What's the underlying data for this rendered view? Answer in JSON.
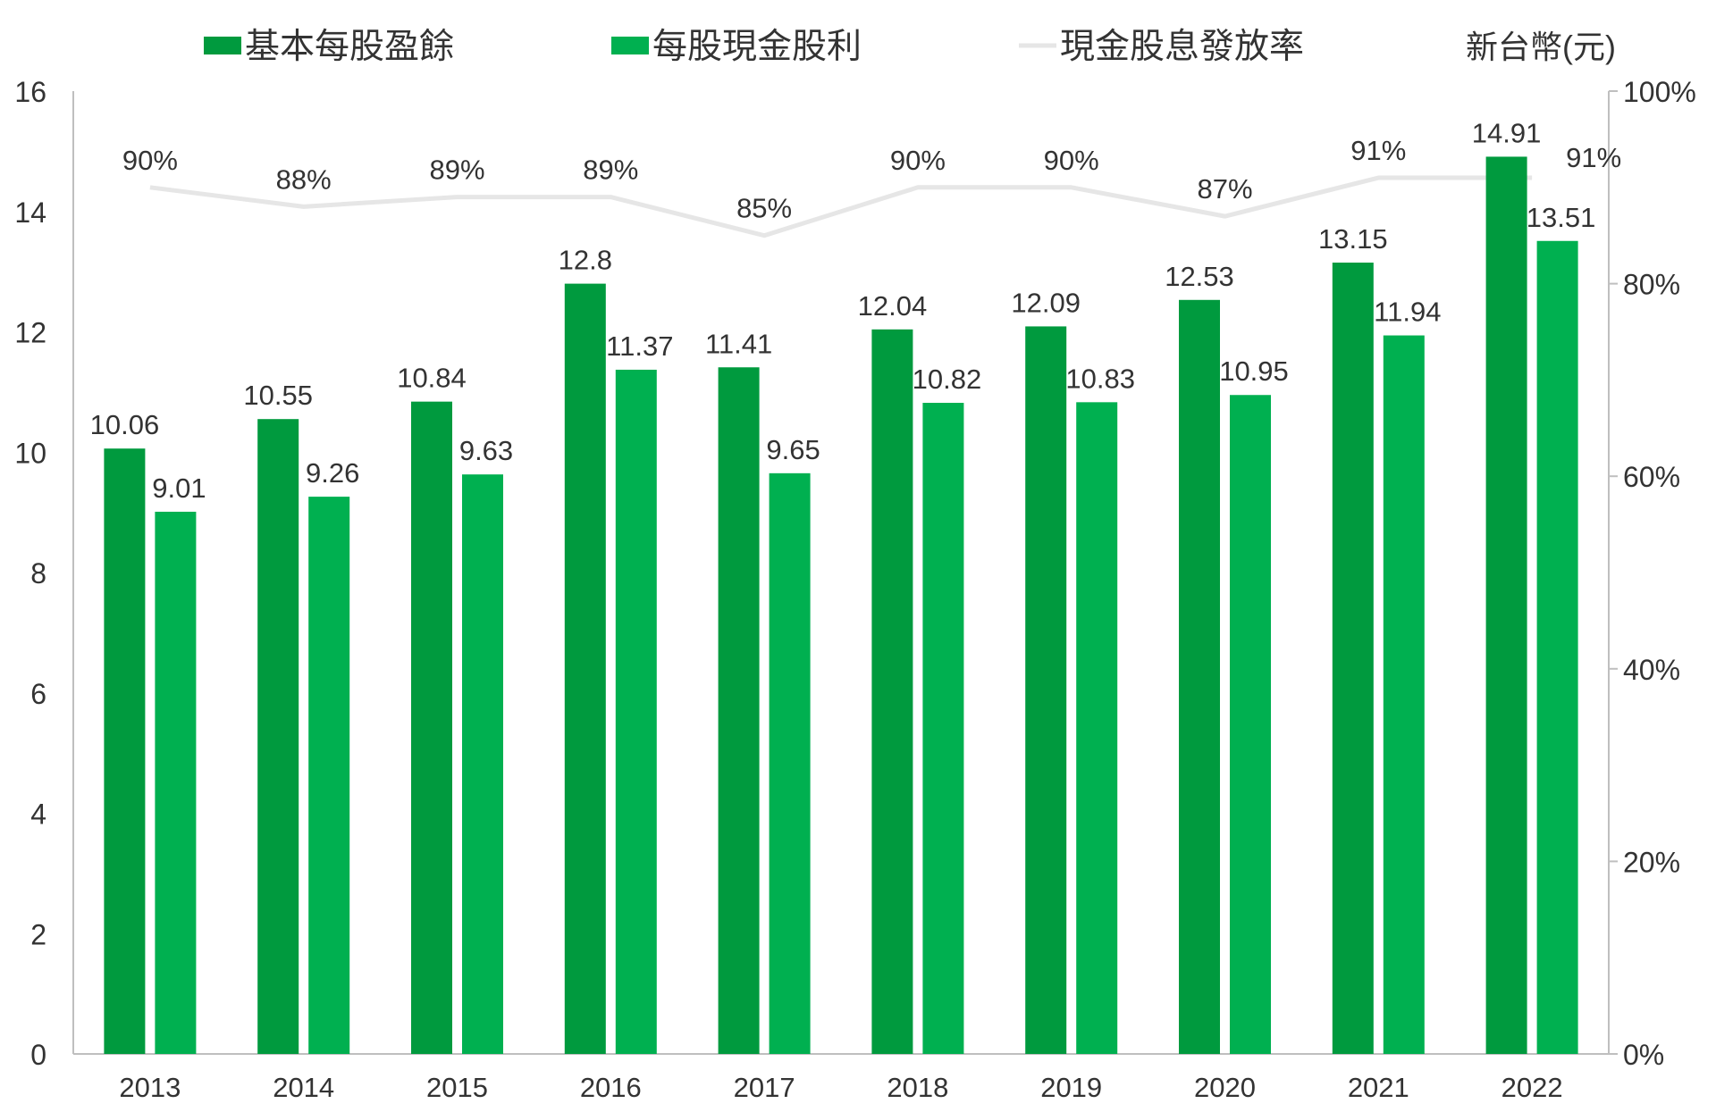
{
  "chart_data": {
    "type": "bar",
    "categories": [
      "2013",
      "2014",
      "2015",
      "2016",
      "2017",
      "2018",
      "2019",
      "2020",
      "2021",
      "2022"
    ],
    "series": [
      {
        "name": "基本每股盈餘",
        "kind": "bar",
        "axis": "left",
        "color": "#009a3e",
        "values": [
          10.06,
          10.55,
          10.84,
          12.8,
          11.41,
          12.04,
          12.09,
          12.53,
          13.15,
          14.91
        ],
        "labels": [
          "10.06",
          "10.55",
          "10.84",
          "12.8",
          "11.41",
          "12.04",
          "12.09",
          "12.53",
          "13.15",
          "14.91"
        ]
      },
      {
        "name": "每股現金股利",
        "kind": "bar",
        "axis": "left",
        "color": "#00b050",
        "values": [
          9.01,
          9.26,
          9.63,
          11.37,
          9.65,
          10.82,
          10.83,
          10.95,
          11.94,
          13.51
        ],
        "labels": [
          "9.01",
          "9.26",
          "9.63",
          "11.37",
          "9.65",
          "10.82",
          "10.83",
          "10.95",
          "11.94",
          "13.51"
        ]
      },
      {
        "name": "現金股息發放率",
        "kind": "line",
        "axis": "right",
        "color": "#e6e6e6",
        "values": [
          90,
          88,
          89,
          89,
          85,
          90,
          90,
          87,
          91,
          91
        ],
        "labels": [
          "90%",
          "88%",
          "89%",
          "89%",
          "85%",
          "90%",
          "90%",
          "87%",
          "91%",
          "91%"
        ]
      }
    ],
    "unit_label": "新台幣(元)",
    "y_left": {
      "min": 0,
      "max": 16,
      "ticks": [
        "0",
        "2",
        "4",
        "6",
        "8",
        "10",
        "12",
        "14",
        "16"
      ]
    },
    "y_right": {
      "min": 0,
      "max": 100,
      "ticks": [
        "0%",
        "20%",
        "40%",
        "60%",
        "80%",
        "100%"
      ]
    },
    "grid": false,
    "legend": "top"
  }
}
